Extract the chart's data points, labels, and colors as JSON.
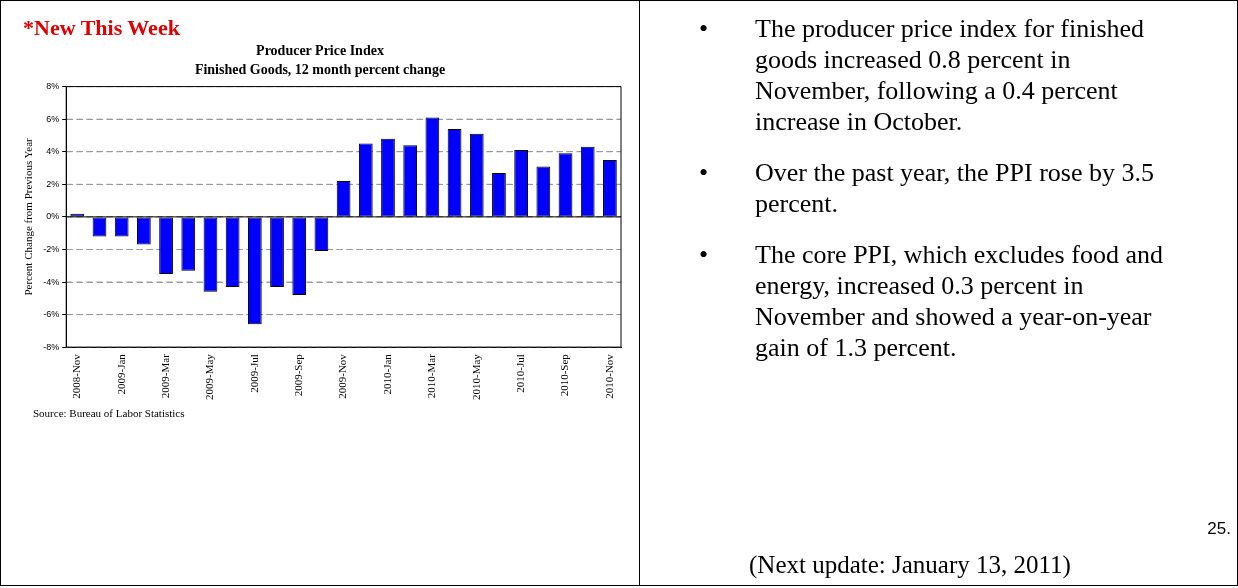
{
  "chart_data": [
    {
      "type": "bar",
      "title": "Producer Price Index",
      "subtitle": "Finished Goods, 12 month percent change",
      "ylabel": "Percent Change from Previous Year",
      "categories": [
        "2008-Nov",
        null,
        "2009-Jan",
        null,
        "2009-Mar",
        null,
        "2009-May",
        null,
        "2009-Jul",
        null,
        "2009-Sep",
        null,
        "2009-Nov",
        null,
        "2010-Jan",
        null,
        "2010-Mar",
        null,
        "2010-May",
        null,
        "2010-Jul",
        null,
        "2010-Sep",
        null,
        "2010-Nov"
      ],
      "values": [
        0.2,
        -1.2,
        -1.2,
        -1.7,
        -3.5,
        -3.3,
        -4.6,
        -4.3,
        -6.6,
        -4.3,
        -4.8,
        -2.1,
        2.2,
        4.5,
        4.8,
        4.4,
        6.1,
        5.4,
        5.1,
        2.7,
        4.1,
        3.1,
        3.9,
        4.3,
        3.5
      ],
      "color": "#0000ff",
      "ylim": [
        -8,
        8
      ],
      "yticks": [
        {
          "value": -8,
          "label": "-8%"
        },
        {
          "value": -6,
          "label": "-6%"
        },
        {
          "value": -4,
          "label": "-4%"
        },
        {
          "value": -2,
          "label": "-2%"
        },
        {
          "value": 0,
          "label": "0%"
        },
        {
          "value": 2,
          "label": "2%"
        },
        {
          "value": 4,
          "label": "4%"
        },
        {
          "value": 6,
          "label": "6%"
        },
        {
          "value": 8,
          "label": "8%"
        }
      ],
      "grid": "y",
      "line_style": "dashed",
      "legend": false,
      "annotations": [
        "*New This Week",
        "Source: Bureau of Labor Statistics"
      ]
    },
    {
      "type": "other",
      "annotations": [
        "• The producer price index for finished goods increased 0.8 percent in November, following a 0.4 percent increase in October.",
        "• Over the past year, the PPI rose by 3.5 percent.",
        "• The core PPI, which excludes food and energy, increased 0.3 percent in November and showed a year-on-year gain of 1.3 percent.",
        "25.",
        "(Next update: January 13, 2011)"
      ]
    }
  ]
}
